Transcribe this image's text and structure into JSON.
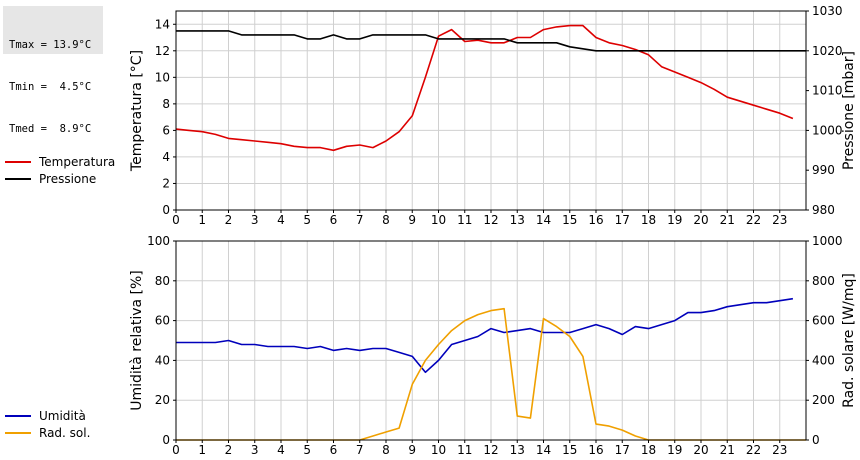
{
  "stats": {
    "tmax": "Tmax = 13.9°C",
    "tmin": "Tmin =  4.5°C",
    "tmed": "Tmed =  8.9°C"
  },
  "chart_data": [
    {
      "type": "line",
      "ylabel_left": "Temperatura [°C]",
      "ylabel_right": "Pressione [mbar]",
      "xlim": [
        0,
        24
      ],
      "x_ticks": [
        0,
        1,
        2,
        3,
        4,
        5,
        6,
        7,
        8,
        9,
        10,
        11,
        12,
        13,
        14,
        15,
        16,
        17,
        18,
        19,
        20,
        21,
        22,
        23
      ],
      "ylim_left": [
        0,
        15
      ],
      "y_ticks_left": [
        0,
        2,
        4,
        6,
        8,
        10,
        12,
        14
      ],
      "ylim_right": [
        980,
        1030
      ],
      "y_ticks_right": [
        980,
        990,
        1000,
        1010,
        1020,
        1030
      ],
      "grid": true,
      "legend_position": "left",
      "series": [
        {
          "name": "Temperatura",
          "color": "#dd0000",
          "axis": "left",
          "x": [
            0,
            0.5,
            1,
            1.5,
            2,
            2.5,
            3,
            3.5,
            4,
            4.5,
            5,
            5.5,
            6,
            6.5,
            7,
            7.5,
            8,
            8.5,
            9,
            9.5,
            10,
            10.5,
            11,
            11.5,
            12,
            12.5,
            13,
            13.5,
            14,
            14.5,
            15,
            15.5,
            16,
            16.5,
            17,
            17.5,
            18,
            18.5,
            19,
            19.5,
            20,
            20.5,
            21,
            21.5,
            22,
            22.5,
            23,
            23.5
          ],
          "values": [
            6.1,
            6.0,
            5.9,
            5.7,
            5.4,
            5.3,
            5.2,
            5.1,
            5.0,
            4.8,
            4.7,
            4.7,
            4.5,
            4.8,
            4.9,
            4.7,
            5.2,
            5.9,
            7.1,
            10.0,
            13.1,
            13.6,
            12.7,
            12.8,
            12.6,
            12.6,
            13.0,
            13.0,
            13.6,
            13.8,
            13.9,
            13.9,
            13.0,
            12.6,
            12.4,
            12.1,
            11.7,
            10.8,
            10.4,
            10.0,
            9.6,
            9.1,
            8.5,
            8.2,
            7.9,
            7.6,
            7.3,
            6.9
          ]
        },
        {
          "name": "Pressione",
          "color": "#000000",
          "axis": "right",
          "x": [
            0,
            2,
            2.5,
            4.5,
            5,
            5.5,
            6,
            6.5,
            7,
            7.5,
            9.5,
            10,
            12.5,
            13,
            14.5,
            15,
            16,
            24
          ],
          "values": [
            1025.0,
            1025.0,
            1024.0,
            1024.0,
            1023.0,
            1023.0,
            1024.0,
            1023.0,
            1023.0,
            1024.0,
            1024.0,
            1023.0,
            1023.0,
            1022.0,
            1022.0,
            1021.0,
            1020.0,
            1020.0
          ]
        }
      ]
    },
    {
      "type": "line",
      "ylabel_left": "Umidità relativa [%]",
      "ylabel_right": "Rad. solare [W/mq]",
      "xlim": [
        0,
        24
      ],
      "x_ticks": [
        0,
        1,
        2,
        3,
        4,
        5,
        6,
        7,
        8,
        9,
        10,
        11,
        12,
        13,
        14,
        15,
        16,
        17,
        18,
        19,
        20,
        21,
        22,
        23
      ],
      "ylim_left": [
        0,
        100
      ],
      "y_ticks_left": [
        0,
        20,
        40,
        60,
        80,
        100
      ],
      "ylim_right": [
        0,
        1000
      ],
      "y_ticks_right": [
        0,
        200,
        400,
        600,
        800,
        1000
      ],
      "grid": true,
      "legend_position": "left",
      "series": [
        {
          "name": "Umidità",
          "color": "#0000bb",
          "axis": "left",
          "x": [
            0,
            0.5,
            1,
            1.5,
            2,
            2.5,
            3,
            3.5,
            4,
            4.5,
            5,
            5.5,
            6,
            6.5,
            7,
            7.5,
            8,
            8.5,
            9,
            9.5,
            10,
            10.5,
            11,
            11.5,
            12,
            12.5,
            13,
            13.5,
            14,
            14.5,
            15,
            15.5,
            16,
            16.5,
            17,
            17.5,
            18,
            18.5,
            19,
            19.5,
            20,
            20.5,
            21,
            21.5,
            22,
            22.5,
            23,
            23.5
          ],
          "values": [
            49,
            49,
            49,
            49,
            50,
            48,
            48,
            47,
            47,
            47,
            46,
            47,
            45,
            46,
            45,
            46,
            46,
            44,
            42,
            34,
            40,
            48,
            50,
            52,
            56,
            54,
            55,
            56,
            54,
            54,
            54,
            56,
            58,
            56,
            53,
            57,
            56,
            58,
            60,
            64,
            64,
            65,
            67,
            68,
            69,
            69,
            70,
            71
          ]
        },
        {
          "name": "Rad. sol.",
          "color": "#f0a000",
          "axis": "right",
          "x": [
            0,
            7,
            7.5,
            8,
            8.5,
            9,
            9.5,
            10,
            10.5,
            11,
            11.5,
            12,
            12.5,
            13,
            13.5,
            14,
            14.5,
            15,
            15.5,
            16,
            16.5,
            17,
            17.5,
            18,
            24
          ],
          "values": [
            0,
            0,
            20,
            40,
            60,
            280,
            400,
            480,
            550,
            600,
            630,
            650,
            660,
            120,
            110,
            610,
            570,
            520,
            420,
            80,
            70,
            50,
            20,
            0,
            0
          ]
        }
      ]
    }
  ]
}
